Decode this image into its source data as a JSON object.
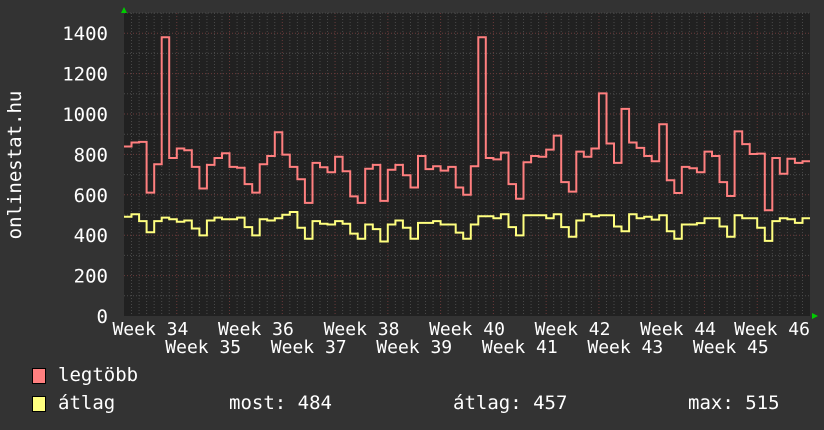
{
  "chart_data": {
    "type": "line",
    "ylabel": "onlinestat.hu",
    "ylim": [
      0,
      1500
    ],
    "yticks": [
      "0",
      "200",
      "400",
      "600",
      "800",
      "1000",
      "1200",
      "1400"
    ],
    "ytick_values": [
      0,
      200,
      400,
      600,
      800,
      1000,
      1200,
      1400
    ],
    "xtick_labels": [
      "Week 34",
      "Week 35",
      "Week 36",
      "Week 37",
      "Week 38",
      "Week 39",
      "Week 40",
      "Week 41",
      "Week 42",
      "Week 43",
      "Week 44",
      "Week 45",
      "Week 46"
    ],
    "grid": true,
    "legend_placement": "bottom-left",
    "series": [
      {
        "name": "legtöbb",
        "color": "#ff7f7f",
        "values": [
          839,
          859,
          862,
          611,
          751,
          1380,
          782,
          829,
          821,
          738,
          631,
          748,
          782,
          806,
          738,
          734,
          653,
          611,
          751,
          792,
          910,
          799,
          738,
          677,
          560,
          758,
          736,
          712,
          788,
          717,
          592,
          560,
          729,
          748,
          570,
          724,
          748,
          697,
          636,
          792,
          727,
          741,
          720,
          738,
          636,
          600,
          741,
          1380,
          782,
          775,
          809,
          653,
          580,
          761,
          792,
          788,
          824,
          893,
          663,
          616,
          814,
          788,
          829,
          1102,
          854,
          758,
          1025,
          859,
          832,
          792,
          766,
          949,
          672,
          609,
          738,
          731,
          712,
          814,
          792,
          663,
          594,
          914,
          851,
          802,
          804,
          524,
          782,
          704,
          778,
          758,
          766
        ]
      },
      {
        "name": "átlag",
        "color": "#ffff7f",
        "values": [
          491,
          504,
          470,
          415,
          470,
          487,
          479,
          467,
          473,
          433,
          399,
          473,
          487,
          479,
          479,
          487,
          440,
          399,
          479,
          473,
          484,
          501,
          515,
          437,
          382,
          470,
          457,
          453,
          470,
          457,
          408,
          382,
          453,
          430,
          369,
          453,
          473,
          437,
          382,
          461,
          461,
          470,
          453,
          453,
          413,
          382,
          453,
          494,
          494,
          484,
          504,
          440,
          399,
          499,
          499,
          499,
          484,
          504,
          440,
          392,
          473,
          504,
          494,
          499,
          499,
          443,
          420,
          504,
          484,
          491,
          477,
          499,
          420,
          382,
          453,
          453,
          460,
          484,
          484,
          443,
          392,
          499,
          484,
          484,
          437,
          372,
          470,
          484,
          479,
          461,
          484
        ]
      }
    ],
    "stats": {
      "most": "most: 484",
      "atlag": "átlag: 457",
      "max": "max: 515"
    }
  },
  "colors": {
    "background": "#333333",
    "plot_background": "#212121",
    "arrow": "#00cc00"
  }
}
